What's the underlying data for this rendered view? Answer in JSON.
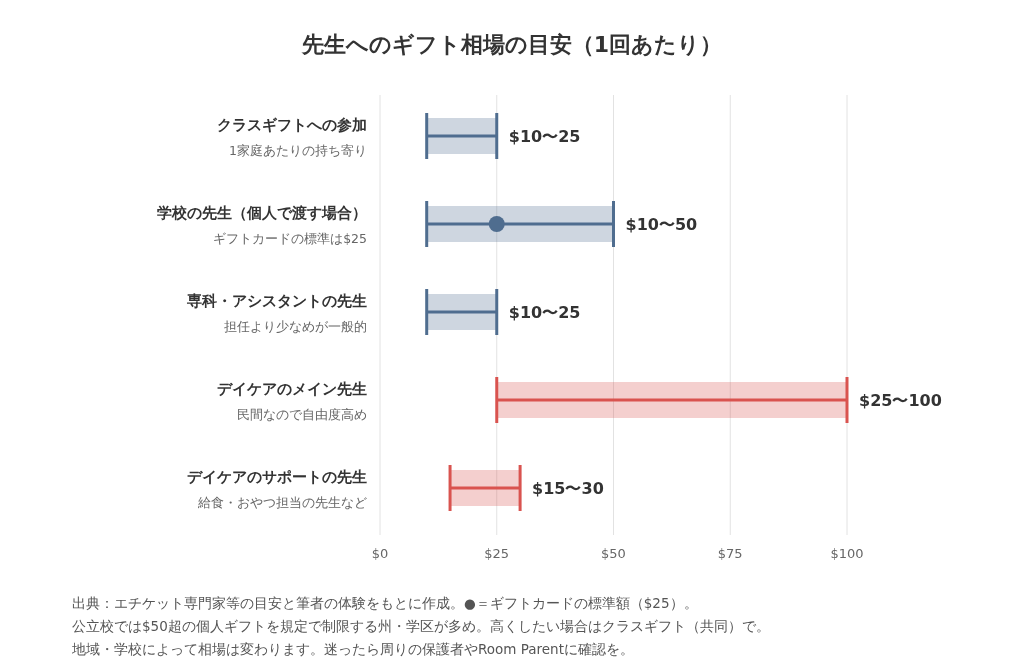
{
  "chart_data": {
    "type": "bar",
    "orientation": "horizontal",
    "title": "先生へのギフト相場の目安（1回あたり）",
    "categories": [
      "クラスギフトへの参加",
      "学校の先生（個人で渡す場合）",
      "専科・アシスタントの先生",
      "デイケアのメイン先生",
      "デイケアのサポートの先生"
    ],
    "series": [
      {
        "base": [
          10,
          10,
          10,
          25,
          15
        ],
        "values": [
          15,
          40,
          15,
          75,
          15
        ],
        "colors": [
          "#4f6d8f",
          "#4f6d8f",
          "#4f6d8f",
          "#d9534f",
          "#d9534f"
        ]
      },
      {
        "type": "scatter",
        "x": [
          "学校の先生（個人で渡す場合）"
        ],
        "values": [
          25
        ],
        "color": "#4f6d8f",
        "marker": "circle"
      }
    ],
    "xlim": [
      0,
      100
    ],
    "xticks": [
      {
        "value": 0,
        "label": "$0"
      },
      {
        "value": 25,
        "label": "$25"
      },
      {
        "value": 50,
        "label": "$50"
      },
      {
        "value": 75,
        "label": "$75"
      },
      {
        "value": 100,
        "label": "$100"
      }
    ],
    "grid": "x",
    "annotations": [
      "1家庭あたりの持ち寄り",
      "ギフトカードの標準は$25",
      "担任より少なめが一般的",
      "民間なので自由度高め",
      "給食・おやつ担当の先生など",
      {
        "text": "$10〜25",
        "x": 25,
        "y": "クラスギフトへの参加"
      },
      {
        "text": "$10〜50",
        "x": 50,
        "y": "学校の先生（個人で渡す場合）"
      },
      {
        "text": "$10〜25",
        "x": 25,
        "y": "専科・アシスタントの先生"
      },
      {
        "text": "$25〜100",
        "x": 100,
        "y": "デイケアのメイン先生"
      },
      {
        "text": "$15〜30",
        "x": 30,
        "y": "デイケアのサポートの先生"
      },
      "出典：エチケット専門家等の目安と筆者の体験をもとに作成。●＝ギフトカードの標準額（$25）。",
      "公立校では$50超の個人ギフトを規定で制限する州・学区が多め。高くしたい場合はクラスギフト（共同）で。",
      "地域・学校によって相場は変わります。迷ったら周りの保護者やRoom Parentに確認を。"
    ]
  }
}
